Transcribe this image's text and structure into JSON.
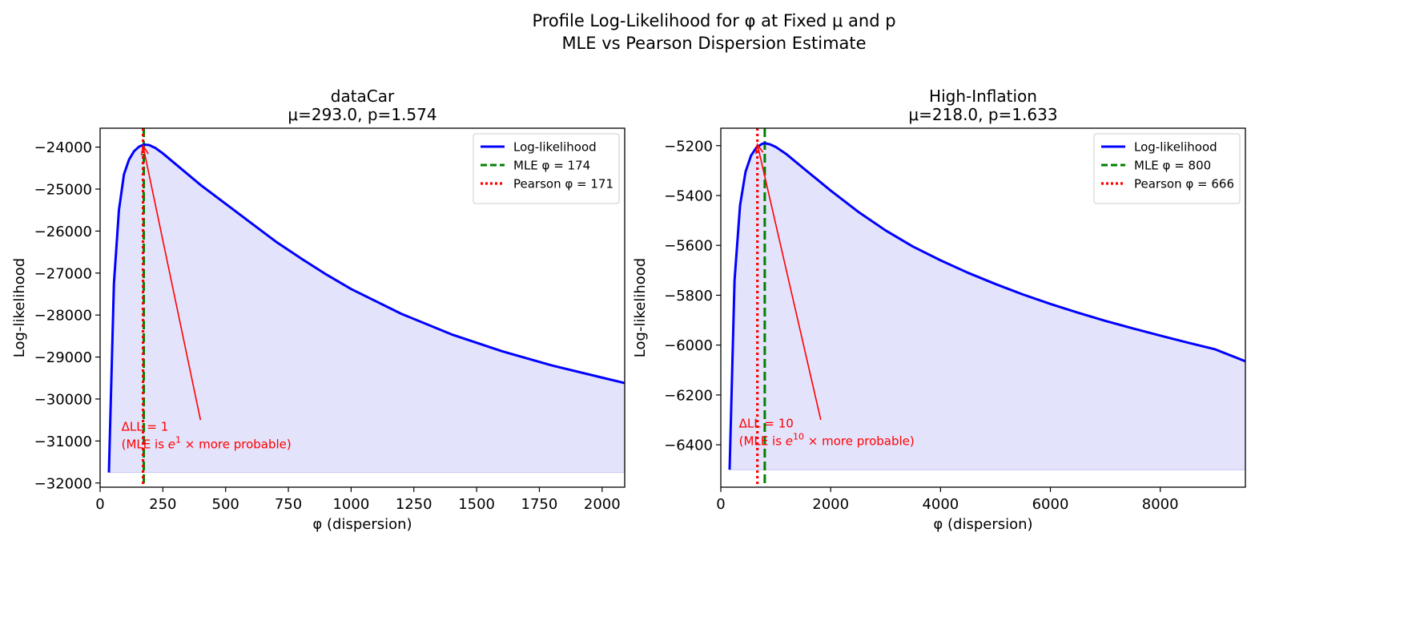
{
  "figure": {
    "suptitle_line1": "Profile Log-Likelihood for φ at Fixed μ and p",
    "suptitle_line2": "MLE vs Pearson Dispersion Estimate"
  },
  "colors": {
    "curve": "#0000ff",
    "fill": "#e3e3fb",
    "mle": "#008000",
    "pearson": "#ff0000",
    "annotation": "#ff0000"
  },
  "chart_data": [
    {
      "type": "line",
      "title_line1": "dataCar",
      "title_line2": "μ=293.0, p=1.574",
      "xlabel": "φ (dispersion)",
      "ylabel": "Log-likelihood",
      "xlim": [
        0,
        2090
      ],
      "ylim": [
        -32100,
        -23550
      ],
      "xticks": [
        0,
        250,
        500,
        750,
        1000,
        1250,
        1500,
        1750,
        2000
      ],
      "yticks": [
        -32000,
        -31000,
        -30000,
        -29000,
        -28000,
        -27000,
        -26000,
        -25000,
        -24000
      ],
      "fill_baseline": -31750,
      "grid": false,
      "legend_position": "top-right",
      "series": [
        {
          "name": "Log-likelihood",
          "x": [
            35,
            55,
            75,
            95,
            115,
            135,
            155,
            174,
            195,
            220,
            250,
            300,
            400,
            500,
            600,
            700,
            800,
            900,
            1000,
            1200,
            1400,
            1600,
            1800,
            2000,
            2090
          ],
          "y": [
            -31750,
            -27250,
            -25500,
            -24650,
            -24300,
            -24100,
            -23990,
            -23940,
            -23950,
            -24020,
            -24150,
            -24400,
            -24900,
            -25350,
            -25800,
            -26250,
            -26650,
            -27030,
            -27380,
            -27970,
            -28460,
            -28860,
            -29200,
            -29490,
            -29620
          ]
        }
      ],
      "vlines": [
        {
          "name": "MLE φ = 174",
          "x": 174,
          "style": "dashed"
        },
        {
          "name": "Pearson φ = 171",
          "x": 171,
          "style": "dotted"
        }
      ],
      "annotation": {
        "line1": "ΔLL = 1",
        "line2_prefix": "(MLE is ",
        "base": "e",
        "exponent": "1",
        "line2_suffix": " ×  more probable)",
        "text_x": 85,
        "text_y": -30750,
        "arrow_from": [
          400,
          -30500
        ],
        "arrow_to": [
          171,
          -23970
        ]
      }
    },
    {
      "type": "line",
      "title_line1": "High-Inflation",
      "title_line2": "μ=218.0, p=1.633",
      "xlabel": "φ (dispersion)",
      "ylabel": "Log-likelihood",
      "xlim": [
        0,
        9550
      ],
      "ylim": [
        -6570,
        -5130
      ],
      "xticks": [
        0,
        2000,
        4000,
        6000,
        8000
      ],
      "yticks": [
        -6400,
        -6200,
        -6000,
        -5800,
        -5600,
        -5400,
        -5200
      ],
      "fill_baseline": -6500,
      "grid": false,
      "legend_position": "top-right",
      "series": [
        {
          "name": "Log-likelihood",
          "x": [
            160,
            250,
            350,
            450,
            550,
            650,
            750,
            800,
            900,
            1000,
            1200,
            1500,
            2000,
            2500,
            3000,
            3500,
            4000,
            4500,
            5000,
            5500,
            6000,
            6500,
            7000,
            7500,
            8000,
            8500,
            9000,
            9550
          ],
          "y": [
            -6500,
            -5740,
            -5440,
            -5305,
            -5240,
            -5207,
            -5193,
            -5190,
            -5195,
            -5205,
            -5235,
            -5290,
            -5380,
            -5465,
            -5540,
            -5605,
            -5660,
            -5710,
            -5755,
            -5797,
            -5835,
            -5870,
            -5903,
            -5933,
            -5962,
            -5990,
            -6017,
            -6065
          ]
        }
      ],
      "vlines": [
        {
          "name": "MLE φ = 800",
          "x": 800,
          "style": "dashed"
        },
        {
          "name": "Pearson φ = 666",
          "x": 666,
          "style": "dotted"
        }
      ],
      "annotation": {
        "line1": "ΔLL = 10",
        "line2_prefix": "(MLE is ",
        "base": "e",
        "exponent": "10",
        "line2_suffix": " ×  more probable)",
        "text_x": 330,
        "text_y": -6330,
        "arrow_from": [
          1820,
          -6300
        ],
        "arrow_to": [
          666,
          -5195
        ]
      }
    }
  ]
}
